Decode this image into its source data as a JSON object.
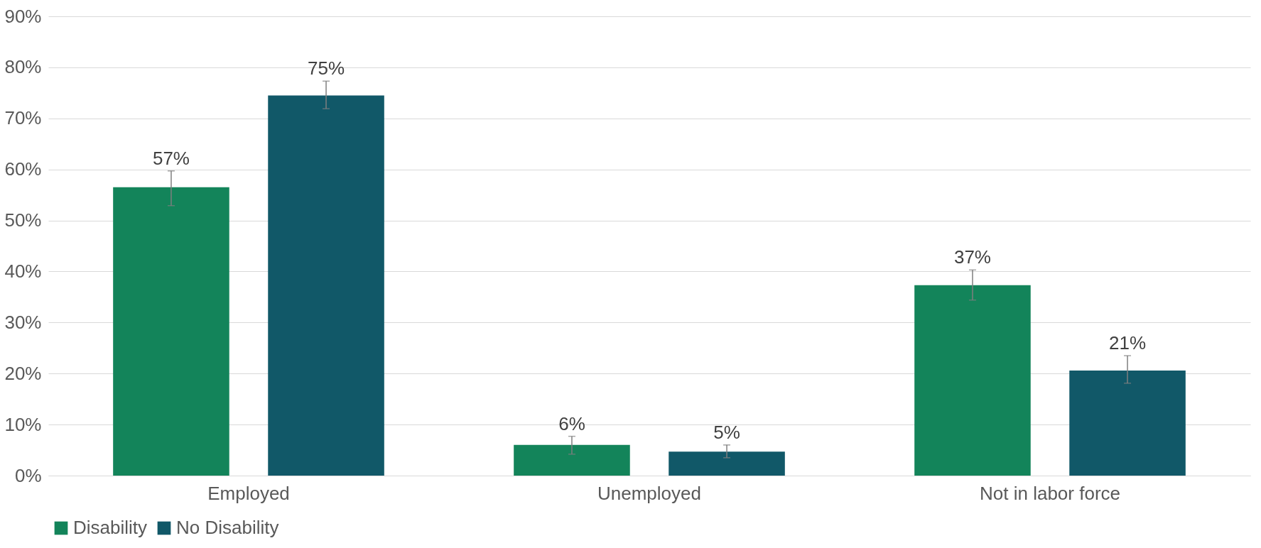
{
  "chart_data": {
    "type": "bar",
    "categories": [
      "Employed",
      "Unemployed",
      "Not in labor force"
    ],
    "series": [
      {
        "name": "Disability",
        "color": "#13845a",
        "values": [
          56.5,
          6.0,
          37.3
        ],
        "errors": [
          [
            52.9,
            59.7
          ],
          [
            4.2,
            7.7
          ],
          [
            34.4,
            40.3
          ]
        ],
        "value_labels": [
          "57%",
          "6%",
          "37%"
        ]
      },
      {
        "name": "No Disability",
        "color": "#115868",
        "values": [
          74.5,
          4.7,
          20.6
        ],
        "errors": [
          [
            71.9,
            77.3
          ],
          [
            3.5,
            6.0
          ],
          [
            18.1,
            23.5
          ]
        ],
        "value_labels": [
          "75%",
          "5%",
          "21%"
        ]
      }
    ],
    "ylim": [
      0,
      90
    ],
    "yticks": [
      {
        "value": 0,
        "label": "0%"
      },
      {
        "value": 10,
        "label": "10%"
      },
      {
        "value": 20,
        "label": "20%"
      },
      {
        "value": 30,
        "label": "30%"
      },
      {
        "value": 40,
        "label": "40%"
      },
      {
        "value": 50,
        "label": "50%"
      },
      {
        "value": 60,
        "label": "60%"
      },
      {
        "value": 70,
        "label": "70%"
      },
      {
        "value": 80,
        "label": "80%"
      },
      {
        "value": 90,
        "label": "90%"
      }
    ],
    "grid": "y",
    "legend": "bottom"
  }
}
